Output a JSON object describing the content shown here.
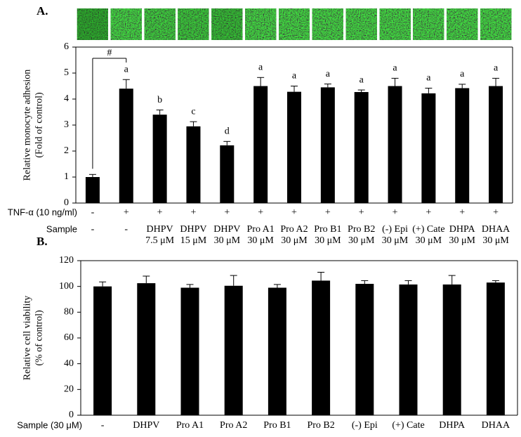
{
  "chart_data": [
    {
      "type": "bar",
      "panel": "A.",
      "ylabel": [
        "Relative monocyte adhesion",
        "(Fold of control)"
      ],
      "row_labels": [
        "TNF-α (10 ng/ml)",
        "Sample"
      ],
      "treatment": [
        "-",
        "+",
        "+",
        "+",
        "+",
        "+",
        "+",
        "+",
        "+",
        "+",
        "+",
        "+",
        "+"
      ],
      "categories": [
        [
          "-"
        ],
        [
          "-"
        ],
        [
          "DHPV",
          "7.5 μM"
        ],
        [
          "DHPV",
          "15 μM"
        ],
        [
          "DHPV",
          "30 μM"
        ],
        [
          "Pro A1",
          "30 μM"
        ],
        [
          "Pro A2",
          "30 μM"
        ],
        [
          "Pro B1",
          "30 μM"
        ],
        [
          "Pro B2",
          "30 μM"
        ],
        [
          "(-) Epi",
          "30 μM"
        ],
        [
          "(+) Cate",
          "30 μM"
        ],
        [
          "DHPA",
          "30 μM"
        ],
        [
          "DHAA",
          "30 μM"
        ]
      ],
      "values": [
        1.0,
        4.4,
        3.4,
        2.95,
        2.22,
        4.5,
        4.28,
        4.45,
        4.27,
        4.5,
        4.22,
        4.42,
        4.5
      ],
      "errors": [
        0.1,
        0.35,
        0.18,
        0.18,
        0.15,
        0.33,
        0.22,
        0.13,
        0.08,
        0.3,
        0.2,
        0.15,
        0.3
      ],
      "letters": [
        null,
        "a",
        "b",
        "c",
        "d",
        "a",
        "a",
        "a",
        "a",
        "a",
        "a",
        "a",
        "a"
      ],
      "bracket_label": "#",
      "color": "#000000",
      "ylim": [
        0,
        6
      ],
      "yticks": [
        0,
        1,
        2,
        3,
        4,
        5,
        6
      ]
    },
    {
      "type": "bar",
      "panel": "B.",
      "ylabel": [
        "Relative cell viability",
        "(% of control)"
      ],
      "row_labels": [
        "Sample (30 μM)"
      ],
      "categories": [
        [
          "-"
        ],
        [
          "DHPV"
        ],
        [
          "Pro A1"
        ],
        [
          "Pro A2"
        ],
        [
          "Pro B1"
        ],
        [
          "Pro B2"
        ],
        [
          "(-) Epi"
        ],
        [
          "(+) Cate"
        ],
        [
          "DHPA"
        ],
        [
          "DHAA"
        ]
      ],
      "values": [
        100,
        102.5,
        99,
        100.5,
        99,
        104.5,
        102,
        101.5,
        101.5,
        103
      ],
      "errors": [
        3.5,
        5.5,
        2.5,
        8,
        2.5,
        6.5,
        2.5,
        3,
        7,
        1.5
      ],
      "color": "#000000",
      "ylim": [
        0,
        120
      ],
      "yticks": [
        0,
        20,
        40,
        60,
        80,
        100,
        120
      ]
    }
  ]
}
